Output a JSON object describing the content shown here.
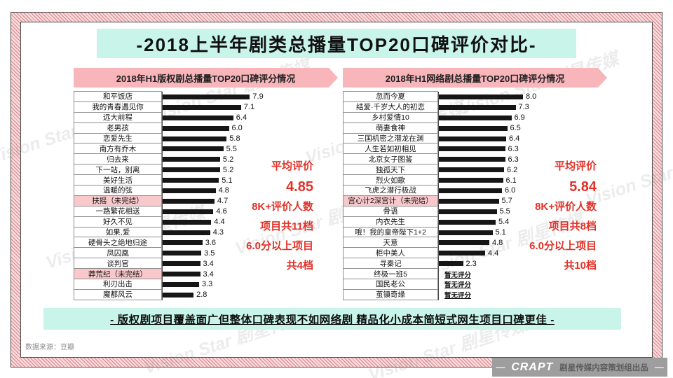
{
  "title": "-2018上半年剧类总播量TOP20口碑评价对比-",
  "watermark": "Vision Star 剧星传媒",
  "source": "数据来源：豆瓣",
  "conclusion": "- 版权剧项目覆盖面广但整体口碑表现不如网络剧 精品化小成本简短式网生项目口碑更佳 -",
  "no_score_label": "暂无评分",
  "footer": {
    "dash": "—",
    "logo": "CRAPT",
    "text": "剧星传媒内容策划组出品"
  },
  "colors": {
    "accent_red": "#e23128",
    "mint_band": "#c8f4e9",
    "pink_ribbon": "#f8b5ba",
    "pink_highlight": "#f9c8cb",
    "bar_black": "#161616",
    "frame_stripe_pink": "#fad9db"
  },
  "charts": [
    {
      "subtitle": "2018年H1版权剧总播量TOP20口碑评分情况",
      "stats": {
        "avg_label": "平均评价",
        "avg_value": "4.85",
        "lines": [
          "8K+评价人数",
          "项目共11档",
          "6.0分以上项目",
          "共4档"
        ]
      },
      "items": [
        {
          "label": "和平饭店",
          "value": 7.9
        },
        {
          "label": "我的青春遇见你",
          "value": 7.1
        },
        {
          "label": "远大前程",
          "value": 6.4
        },
        {
          "label": "老男孩",
          "value": 6.0
        },
        {
          "label": "恋爱先生",
          "value": 5.8
        },
        {
          "label": "南方有乔木",
          "value": 5.5
        },
        {
          "label": "归去来",
          "value": 5.2
        },
        {
          "label": "下一站，别离",
          "value": 5.2
        },
        {
          "label": "美好生活",
          "value": 5.1
        },
        {
          "label": "温暖的弦",
          "value": 4.8
        },
        {
          "label": "扶摇（未完结）",
          "value": 4.7,
          "highlight": true
        },
        {
          "label": "一路繁花相送",
          "value": 4.6
        },
        {
          "label": "好久不见",
          "value": 4.4
        },
        {
          "label": "如果,爱",
          "value": 4.3
        },
        {
          "label": "硬骨头之绝地归途",
          "value": 3.6
        },
        {
          "label": "凤囚凰",
          "value": 3.5
        },
        {
          "label": "谈判官",
          "value": 3.4
        },
        {
          "label": "莽荒纪（未完结）",
          "value": 3.4,
          "highlight": true
        },
        {
          "label": "利刃出击",
          "value": 3.3
        },
        {
          "label": "魔都风云",
          "value": 2.8
        }
      ]
    },
    {
      "subtitle": "2018年H1网络剧总播量TOP20口碑评分情况",
      "stats": {
        "avg_label": "平均评价",
        "avg_value": "5.84",
        "lines": [
          "8K+评价人数",
          "项目共8档",
          "6.0分以上项目",
          "共10档"
        ]
      },
      "items": [
        {
          "label": "忽而今夏",
          "value": 8.0
        },
        {
          "label": "结爱·千岁大人的初恋",
          "value": 7.3
        },
        {
          "label": "乡村爱情10",
          "value": 6.9
        },
        {
          "label": "萌妻食神",
          "value": 6.5
        },
        {
          "label": "三国机密之潜龙在渊",
          "value": 6.4
        },
        {
          "label": "人生若如初相见",
          "value": 6.3
        },
        {
          "label": "北京女子图鉴",
          "value": 6.3
        },
        {
          "label": "独孤天下",
          "value": 6.2
        },
        {
          "label": "烈火如歌",
          "value": 6.1
        },
        {
          "label": "飞虎之潜行极战",
          "value": 6.0
        },
        {
          "label": "宫心计2深宫计（未完结）",
          "value": 5.7,
          "highlight": true
        },
        {
          "label": "骨语",
          "value": 5.5
        },
        {
          "label": "内衣先生",
          "value": 5.4
        },
        {
          "label": "哦！我的皇帝陛下1+2",
          "value": 5.1
        },
        {
          "label": "天意",
          "value": 4.8
        },
        {
          "label": "柜中美人",
          "value": 4.4
        },
        {
          "label": "寻秦记",
          "value": 2.3
        },
        {
          "label": "终极一班5",
          "value": null
        },
        {
          "label": "国民老公",
          "value": null
        },
        {
          "label": "茧镇奇缘",
          "value": null
        }
      ]
    }
  ],
  "chart_data": [
    {
      "type": "bar",
      "orientation": "horizontal",
      "title": "2018年H1版权剧总播量TOP20口碑评分情况",
      "categories": [
        "和平饭店",
        "我的青春遇见你",
        "远大前程",
        "老男孩",
        "恋爱先生",
        "南方有乔木",
        "归去来",
        "下一站，别离",
        "美好生活",
        "温暖的弦",
        "扶摇（未完结）",
        "一路繁花相送",
        "好久不见",
        "如果,爱",
        "硬骨头之绝地归途",
        "凤囚凰",
        "谈判官",
        "莽荒纪（未完结）",
        "利刃出击",
        "魔都风云"
      ],
      "values": [
        7.9,
        7.1,
        6.4,
        6.0,
        5.8,
        5.5,
        5.2,
        5.2,
        5.1,
        4.8,
        4.7,
        4.6,
        4.4,
        4.3,
        3.6,
        3.5,
        3.4,
        3.4,
        3.3,
        2.8
      ],
      "highlighted_categories": [
        "扶摇（未完结）",
        "莽荒纪（未完结）"
      ],
      "xlabel": "",
      "ylabel": "",
      "xlim": [
        0,
        8.5
      ],
      "grid": false,
      "legend": false,
      "annotations": [
        "平均评价 4.85",
        "8K+评价人数项目共11档",
        "6.0分以上项目共4档"
      ]
    },
    {
      "type": "bar",
      "orientation": "horizontal",
      "title": "2018年H1网络剧总播量TOP20口碑评分情况",
      "categories": [
        "忽而今夏",
        "结爱·千岁大人的初恋",
        "乡村爱情10",
        "萌妻食神",
        "三国机密之潜龙在渊",
        "人生若如初相见",
        "北京女子图鉴",
        "独孤天下",
        "烈火如歌",
        "飞虎之潜行极战",
        "宫心计2深宫计（未完结）",
        "骨语",
        "内衣先生",
        "哦！我的皇帝陛下1+2",
        "天意",
        "柜中美人",
        "寻秦记",
        "终极一班5",
        "国民老公",
        "茧镇奇缘"
      ],
      "values": [
        8.0,
        7.3,
        6.9,
        6.5,
        6.4,
        6.3,
        6.3,
        6.2,
        6.1,
        6.0,
        5.7,
        5.5,
        5.4,
        5.1,
        4.8,
        4.4,
        2.3,
        null,
        null,
        null
      ],
      "no_score_categories": [
        "终极一班5",
        "国民老公",
        "茧镇奇缘"
      ],
      "no_score_text": "暂无评分",
      "highlighted_categories": [
        "宫心计2深宫计（未完结）"
      ],
      "xlabel": "",
      "ylabel": "",
      "xlim": [
        0,
        8.5
      ],
      "grid": false,
      "legend": false,
      "annotations": [
        "平均评价 5.84",
        "8K+评价人数项目共8档",
        "6.0分以上项目共10档"
      ]
    }
  ]
}
